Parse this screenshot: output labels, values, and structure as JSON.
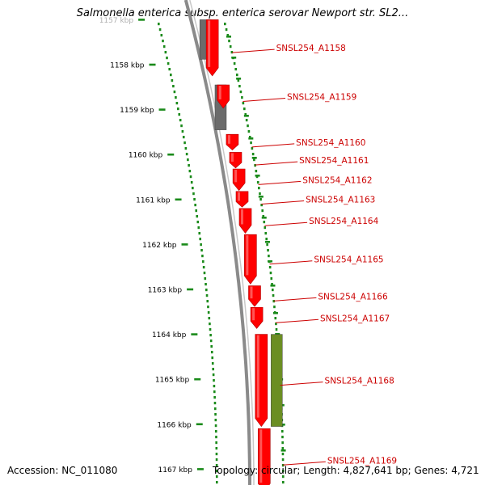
{
  "title": "Salmonella enterica subsp. enterica serovar Newport str. SL2...",
  "footer": {
    "accession": "Accession: NC_011080",
    "topology": "Topology: circular; Length: 4,827,641 bp; Genes: 4,721"
  },
  "colors": {
    "gene_cds": "#ff0000",
    "gene_other": "#6b6b6b",
    "gene_rna": "#6b8e23",
    "backbone": "#8a8a8a",
    "gc_ticks": "#1a8a1a",
    "label": "#cc0000"
  },
  "axis": {
    "unit": "kbp",
    "ticks": [
      {
        "kbp": 1157,
        "label": "1157 kbp"
      },
      {
        "kbp": 1158,
        "label": "1158 kbp"
      },
      {
        "kbp": 1159,
        "label": "1159 kbp"
      },
      {
        "kbp": 1160,
        "label": "1160 kbp"
      },
      {
        "kbp": 1161,
        "label": "1161 kbp"
      },
      {
        "kbp": 1162,
        "label": "1162 kbp"
      },
      {
        "kbp": 1163,
        "label": "1163 kbp"
      },
      {
        "kbp": 1164,
        "label": "1164 kbp"
      },
      {
        "kbp": 1165,
        "label": "1165 kbp"
      },
      {
        "kbp": 1166,
        "label": "1166 kbp"
      },
      {
        "kbp": 1167,
        "label": "1167 kbp"
      }
    ]
  },
  "genes": [
    {
      "id": "SNSL254_A1158",
      "start": 1157.0,
      "end": 1158.25,
      "kind": "cds",
      "strand": 1
    },
    {
      "id": "SNSL254_A1159",
      "start": 1158.45,
      "end": 1158.97,
      "kind": "cds",
      "strand": 1
    },
    {
      "id": "SNSL254_A1160",
      "start": 1159.55,
      "end": 1159.9,
      "kind": "cds",
      "strand": 1
    },
    {
      "id": "SNSL254_A1161",
      "start": 1159.95,
      "end": 1160.3,
      "kind": "cds",
      "strand": 1
    },
    {
      "id": "SNSL254_A1162",
      "start": 1160.32,
      "end": 1160.8,
      "kind": "cds",
      "strand": 1
    },
    {
      "id": "SNSL254_A1163",
      "start": 1160.82,
      "end": 1161.17,
      "kind": "cds",
      "strand": 1
    },
    {
      "id": "SNSL254_A1164",
      "start": 1161.2,
      "end": 1161.75,
      "kind": "cds",
      "strand": 1
    },
    {
      "id": "SNSL254_A1165",
      "start": 1161.78,
      "end": 1162.88,
      "kind": "cds",
      "strand": 1
    },
    {
      "id": "SNSL254_A1166",
      "start": 1162.92,
      "end": 1163.38,
      "kind": "cds",
      "strand": 1
    },
    {
      "id": "SNSL254_A1167",
      "start": 1163.4,
      "end": 1163.87,
      "kind": "cds",
      "strand": 1
    },
    {
      "id": "SNSL254_A1168",
      "start": 1164.0,
      "end": 1166.05,
      "kind": "cds",
      "strand": 1
    },
    {
      "id": "SNSL254_A1169",
      "start": 1166.1,
      "end": 1167.5,
      "kind": "cds",
      "strand": 1
    }
  ],
  "other_features": [
    {
      "start": 1157.0,
      "end": 1157.88,
      "kind": "other"
    },
    {
      "start": 1158.45,
      "end": 1159.45,
      "kind": "other"
    },
    {
      "start": 1164.0,
      "end": 1166.05,
      "kind": "rna"
    }
  ]
}
